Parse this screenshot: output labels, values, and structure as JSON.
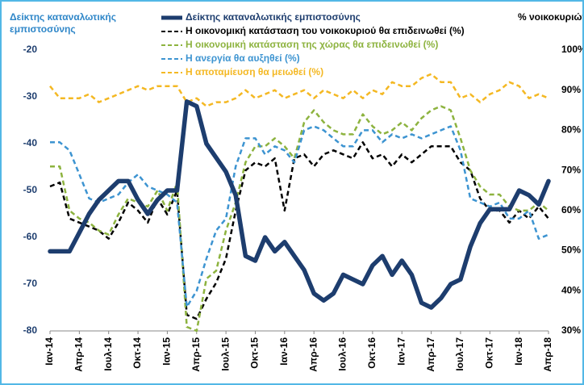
{
  "chart_data": {
    "type": "line",
    "y_label": "Δείκτης καταναλωτικής εμπιστοσύνης",
    "y2_label": "% νοικοκυριών",
    "categories": [
      "Ιαν-14",
      null,
      null,
      "Απρ-14",
      null,
      null,
      "Ιουλ-14",
      null,
      null,
      "Οκτ-14",
      null,
      null,
      "Ιαν-15",
      null,
      null,
      "Απρ-15",
      null,
      null,
      "Ιουλ-15",
      null,
      null,
      "Οκτ-15",
      null,
      null,
      "Ιαν-16",
      null,
      null,
      "Απρ-16",
      null,
      null,
      "Ιουλ-16",
      null,
      null,
      "Οκτ-16",
      null,
      null,
      "Ιαν-17",
      null,
      null,
      "Απρ-17",
      null,
      null,
      "Ιουλ-17",
      null,
      null,
      "Οκτ-17",
      null,
      null,
      "Ιαν-18",
      null,
      null,
      "Απρ-18"
    ],
    "ylim": [
      -80,
      -20
    ],
    "yticks": [
      -80,
      -70,
      -60,
      -50,
      -40,
      -30,
      -20
    ],
    "y2lim": [
      30,
      100
    ],
    "y2ticks": [
      {
        "value": 30,
        "label": "30%"
      },
      {
        "value": 40,
        "label": "40%"
      },
      {
        "value": 50,
        "label": "50%"
      },
      {
        "value": 60,
        "label": "60%"
      },
      {
        "value": 70,
        "label": "70%"
      },
      {
        "value": 80,
        "label": "80%"
      },
      {
        "value": 90,
        "label": "90%"
      },
      {
        "value": 100,
        "label": "100%"
      }
    ],
    "legend": "top",
    "series": [
      {
        "name": "Δείκτης καταναλωτικής εμπιστοσύνης",
        "color": "#1d3d6e",
        "axis": "y",
        "values": [
          -63,
          -63,
          -63,
          -59,
          -55,
          -52,
          -50,
          -48,
          -48,
          -52,
          -55,
          -52,
          -50,
          -50,
          -31,
          -32,
          -40,
          -43,
          -46,
          -51,
          -64,
          -65,
          -60,
          -63,
          -61,
          -64,
          -67,
          -72,
          -73.5,
          -72,
          -68,
          -69,
          -70,
          -66,
          -64,
          -68,
          -65,
          -68,
          -74,
          -75,
          -73,
          -70,
          -69,
          -62,
          -57,
          -54,
          -54,
          -54,
          -50,
          -51,
          -53,
          -48
        ]
      },
      {
        "name": "Η οικονομική κατάσταση του νοικοκυριού θα επιδεινωθεί (%)",
        "color": "#000000",
        "axis": "y2",
        "values": [
          66,
          67,
          58,
          57,
          56,
          55,
          53,
          57,
          62,
          60,
          57,
          63,
          59,
          65,
          34,
          33,
          38,
          42,
          48,
          60,
          70,
          72,
          71,
          73,
          60,
          73,
          74,
          71,
          74,
          75,
          74,
          73,
          77,
          73,
          74,
          71,
          74,
          72,
          74,
          76,
          76,
          76,
          72,
          70,
          63,
          60,
          60,
          57,
          60,
          58,
          61,
          58
        ]
      },
      {
        "name": "Η οικονομική κατάσταση της χώρας θα επιδεινωθεί (%)",
        "color": "#8db33f",
        "axis": "y2",
        "values": [
          71,
          71,
          60,
          58,
          57,
          55,
          54,
          59,
          63,
          62,
          61,
          65,
          60,
          67,
          31,
          30,
          43,
          45,
          55,
          62,
          72,
          76,
          76,
          78,
          76,
          73,
          82,
          85,
          82,
          80,
          79,
          79,
          84,
          81,
          79,
          80,
          82,
          80,
          83,
          85,
          86,
          85,
          78,
          70,
          66,
          64,
          64,
          61,
          60,
          60,
          62,
          60
        ]
      },
      {
        "name": "Η ανεργία θα αυξηθεί (%)",
        "color": "#3d94d1",
        "axis": "y2",
        "values": [
          77,
          77,
          75,
          69,
          63,
          62,
          63,
          64,
          67,
          69,
          66,
          65,
          64,
          62,
          36,
          40,
          48,
          55,
          58,
          71,
          78,
          78,
          74,
          76,
          75,
          72,
          80,
          81,
          80,
          78,
          76,
          76,
          80,
          80,
          77,
          79,
          78,
          79,
          78,
          79,
          80,
          81,
          75,
          63,
          62,
          61,
          62,
          58,
          58,
          60,
          53,
          54
        ]
      },
      {
        "name": "Η αποταμίευση θα μειωθεί (%)",
        "color": "#f4b823",
        "axis": "y2",
        "values": [
          91,
          88,
          88,
          88,
          89,
          87,
          88,
          89,
          90,
          91,
          90,
          91,
          91,
          91,
          87,
          88,
          86,
          87,
          87,
          88,
          90,
          88,
          89,
          90,
          88,
          89,
          90,
          88,
          90,
          89,
          88,
          90,
          88,
          90,
          89,
          92,
          91,
          91,
          93,
          94,
          92,
          92,
          88,
          89,
          87,
          89,
          90,
          92,
          91,
          88,
          89,
          88
        ]
      }
    ]
  }
}
